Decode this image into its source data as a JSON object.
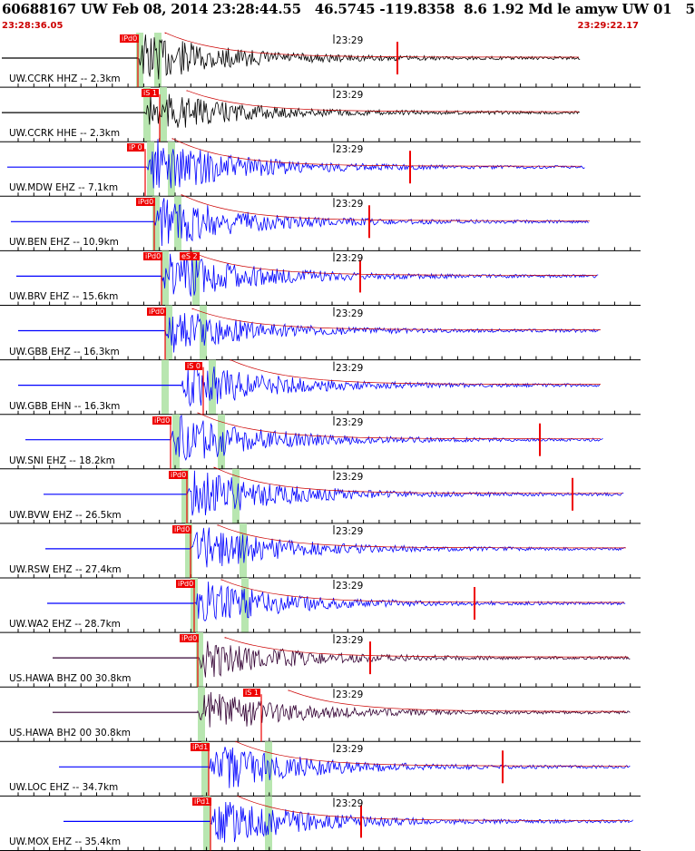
{
  "header": {
    "title": "60688167 UW Feb 08, 2014 23:28:44.55   46.5745 -119.8358  8.6 1.92 Md le amyw UW 01   5",
    "start_time": "23:28:36.05",
    "end_time": "23:29:22.17"
  },
  "colors": {
    "background": "#ffffff",
    "trace_black": "#000000",
    "trace_blue": "#0000ff",
    "trace_purple": "#330033",
    "pick_red": "#ee0000",
    "window_green": "#b8e6b0",
    "grid": "#000000"
  },
  "time_tick_label": "23:29",
  "traces": [
    {
      "label": "UW.CCRK HHZ -- 2.3km",
      "color": "black",
      "pick": "iPd0",
      "pick2": ""
    },
    {
      "label": "UW.CCRK HHE -- 2.3km",
      "color": "black",
      "pick": "iS 1",
      "pick2": ""
    },
    {
      "label": "UW.MDW EHZ -- 7.1km",
      "color": "blue",
      "pick": "iP 0",
      "pick2": ""
    },
    {
      "label": "UW.BEN EHZ -- 10.9km",
      "color": "blue",
      "pick": "iPd0",
      "pick2": ""
    },
    {
      "label": "UW.BRV EHZ -- 15.6km",
      "color": "blue",
      "pick": "iPd0",
      "pick2": "eS 2"
    },
    {
      "label": "UW.GBB EHZ -- 16.3km",
      "color": "blue",
      "pick": "iPd0",
      "pick2": ""
    },
    {
      "label": "UW.GBB EHN -- 16.3km",
      "color": "blue",
      "pick": "iS 0",
      "pick2": ""
    },
    {
      "label": "UW.SNI EHZ -- 18.2km",
      "color": "blue",
      "pick": "iPd0",
      "pick2": ""
    },
    {
      "label": "UW.BVW EHZ -- 26.5km",
      "color": "blue",
      "pick": "iPd0",
      "pick2": ""
    },
    {
      "label": "UW.RSW EHZ -- 27.4km",
      "color": "blue",
      "pick": "iPd0",
      "pick2": ""
    },
    {
      "label": "UW.WA2 EHZ -- 28.7km",
      "color": "blue",
      "pick": "iPd0",
      "pick2": ""
    },
    {
      "label": "US.HAWA BHZ 00 30.8km",
      "color": "purple",
      "pick": "iPd0",
      "pick2": ""
    },
    {
      "label": "US.HAWA BH2 00 30.8km",
      "color": "purple",
      "pick": "iS 1",
      "pick2": ""
    },
    {
      "label": "UW.LOC EHZ -- 34.7km",
      "color": "blue",
      "pick": "iPd1",
      "pick2": ""
    },
    {
      "label": "UW.MOX EHZ -- 35.4km",
      "color": "blue",
      "pick": "iPd1",
      "pick2": ""
    }
  ]
}
